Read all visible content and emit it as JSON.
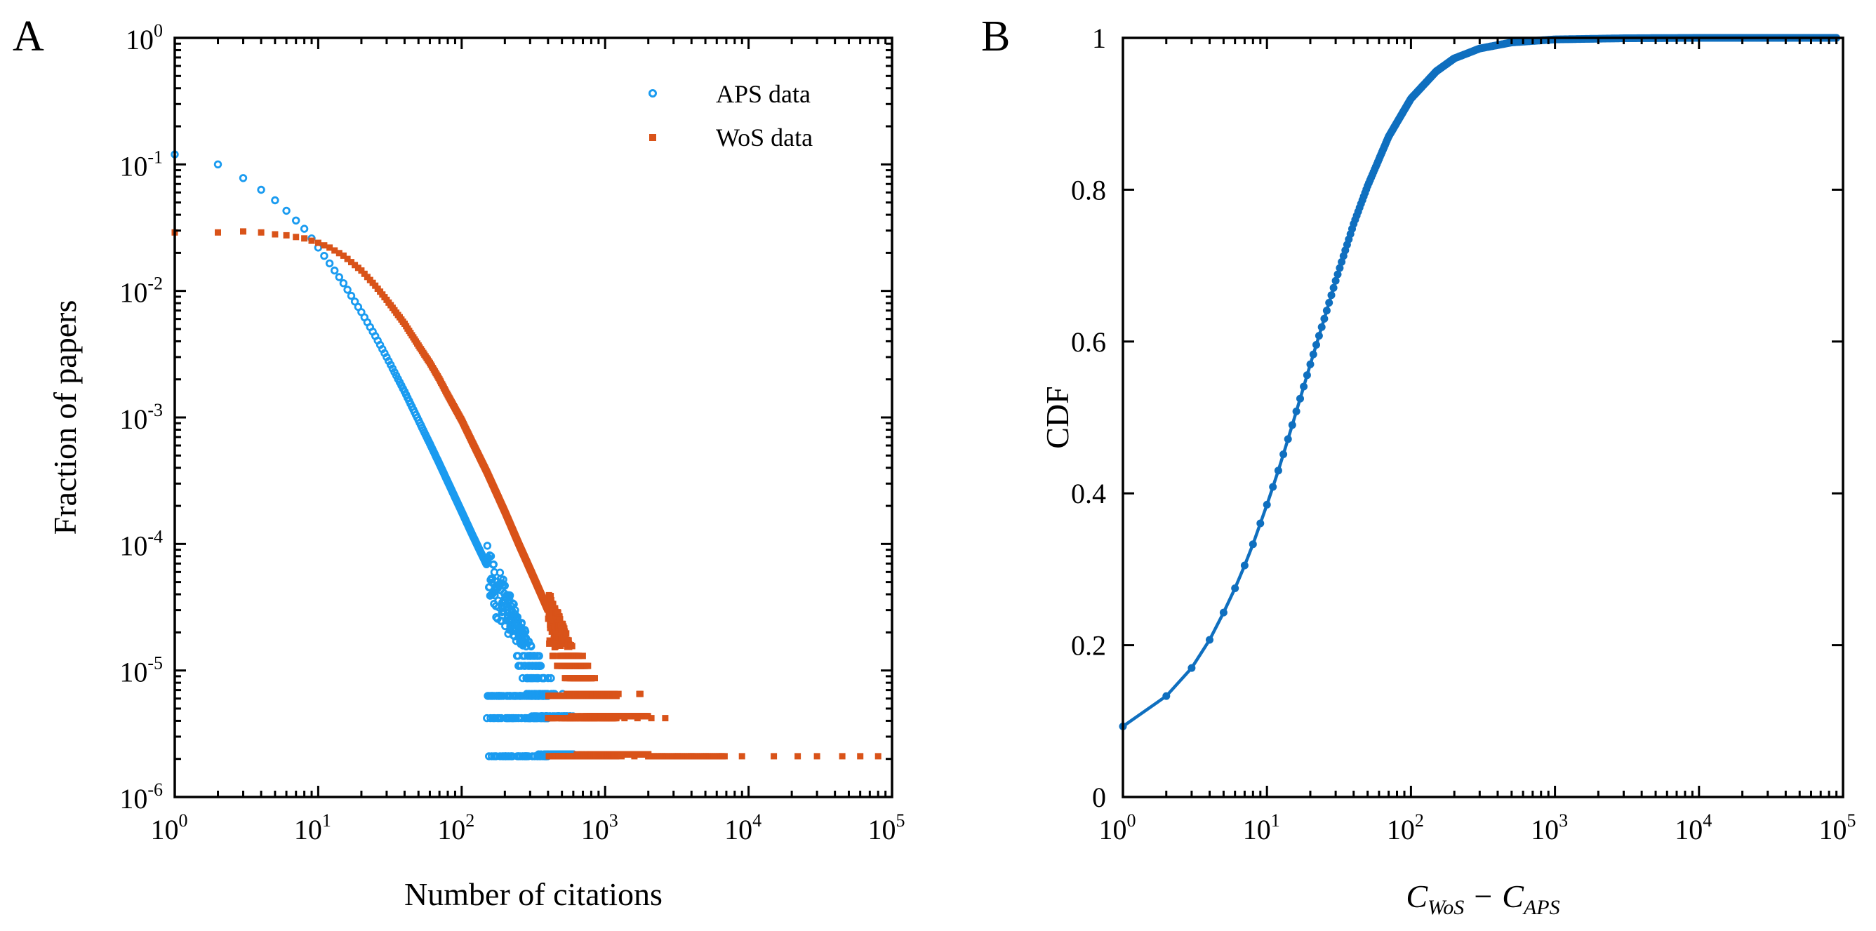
{
  "figure": {
    "panel_a_label": "A",
    "panel_b_label": "B"
  },
  "colors": {
    "aps": "#1a9bf0",
    "wos": "#d95319",
    "cdf": "#0f6fbf",
    "axis": "#000000"
  },
  "chart_data": [
    {
      "type": "scatter",
      "panel": "A",
      "title": "",
      "xlabel": "Number of citations",
      "ylabel": "Fraction of papers",
      "xscale": "log",
      "yscale": "log",
      "xlim": [
        1,
        100000
      ],
      "ylim": [
        1e-06,
        1
      ],
      "x_ticks": [
        {
          "base": "10",
          "exp": "0",
          "value": 1
        },
        {
          "base": "10",
          "exp": "1",
          "value": 10
        },
        {
          "base": "10",
          "exp": "2",
          "value": 100
        },
        {
          "base": "10",
          "exp": "3",
          "value": 1000
        },
        {
          "base": "10",
          "exp": "4",
          "value": 10000
        },
        {
          "base": "10",
          "exp": "5",
          "value": 100000
        }
      ],
      "y_ticks": [
        {
          "base": "10",
          "exp": "0",
          "value": 1
        },
        {
          "base": "10",
          "exp": "-1",
          "value": 0.1
        },
        {
          "base": "10",
          "exp": "-2",
          "value": 0.01
        },
        {
          "base": "10",
          "exp": "-3",
          "value": 0.001
        },
        {
          "base": "10",
          "exp": "-4",
          "value": 0.0001
        },
        {
          "base": "10",
          "exp": "-5",
          "value": 1e-05
        },
        {
          "base": "10",
          "exp": "-6",
          "value": 1e-06
        }
      ],
      "legend_position": "top-right",
      "series": [
        {
          "name": "APS data",
          "marker": "circle",
          "color": "#1a9bf0",
          "total_papers": 460000,
          "min_fraction": 2.1e-06,
          "tail_end": 600,
          "spread_start": 150,
          "spread_end": 400,
          "points": [
            [
              1,
              0.12
            ],
            [
              2,
              0.1
            ],
            [
              3,
              0.078
            ],
            [
              4,
              0.063
            ],
            [
              5,
              0.052
            ],
            [
              6,
              0.043
            ],
            [
              7,
              0.036
            ],
            [
              8,
              0.031
            ],
            [
              9,
              0.026
            ],
            [
              10,
              0.022
            ],
            [
              12,
              0.0165
            ],
            [
              15,
              0.0115
            ],
            [
              20,
              0.0068
            ],
            [
              25,
              0.0044
            ],
            [
              30,
              0.003
            ],
            [
              40,
              0.0016
            ],
            [
              50,
              0.00095
            ],
            [
              60,
              0.00062
            ],
            [
              70,
              0.00043
            ],
            [
              80,
              0.00031
            ],
            [
              100,
              0.00018
            ],
            [
              120,
              0.000115
            ],
            [
              150,
              6.8e-05
            ],
            [
              200,
              3.4e-05
            ],
            [
              250,
              1.9e-05
            ],
            [
              300,
              1.15e-05
            ],
            [
              350,
              7.2e-06
            ],
            [
              400,
              4.8e-06
            ],
            [
              500,
              2.8e-06
            ],
            [
              600,
              2.1e-06
            ]
          ]
        },
        {
          "name": "WoS data",
          "marker": "square",
          "color": "#d95319",
          "total_papers": 460000,
          "min_fraction": 2.1e-06,
          "tail_end": 2000,
          "spread_start": 400,
          "spread_end": 1200,
          "sparse_tail": [
            1300,
            1600,
            2000,
            2500,
            3200,
            4000,
            5000,
            6500,
            9000,
            15000,
            22000,
            30000,
            45000,
            60000,
            80000
          ],
          "points": [
            [
              1,
              0.029
            ],
            [
              2,
              0.029
            ],
            [
              3,
              0.0295
            ],
            [
              4,
              0.029
            ],
            [
              5,
              0.028
            ],
            [
              6,
              0.0275
            ],
            [
              8,
              0.026
            ],
            [
              10,
              0.024
            ],
            [
              12,
              0.022
            ],
            [
              15,
              0.019
            ],
            [
              20,
              0.0145
            ],
            [
              25,
              0.011
            ],
            [
              30,
              0.0085
            ],
            [
              40,
              0.0055
            ],
            [
              50,
              0.0037
            ],
            [
              60,
              0.0027
            ],
            [
              70,
              0.002
            ],
            [
              80,
              0.0015
            ],
            [
              100,
              0.00095
            ],
            [
              120,
              0.00062
            ],
            [
              150,
              0.00037
            ],
            [
              200,
              0.00018
            ],
            [
              250,
              0.0001
            ],
            [
              300,
              6.3e-05
            ],
            [
              400,
              3e-05
            ],
            [
              500,
              1.7e-05
            ],
            [
              600,
              1.05e-05
            ],
            [
              800,
              5.2e-06
            ],
            [
              1000,
              3e-06
            ],
            [
              1300,
              2.1e-06
            ]
          ]
        }
      ]
    },
    {
      "type": "line",
      "panel": "B",
      "title": "",
      "xlabel_main": "C",
      "xlabel_sub1": "WoS",
      "xlabel_minus": "−",
      "xlabel_sub2": "APS",
      "ylabel": "CDF",
      "xscale": "log",
      "yscale": "linear",
      "xlim": [
        1,
        100000
      ],
      "ylim": [
        0,
        1
      ],
      "x_ticks": [
        {
          "base": "10",
          "exp": "0",
          "value": 1
        },
        {
          "base": "10",
          "exp": "1",
          "value": 10
        },
        {
          "base": "10",
          "exp": "2",
          "value": 100
        },
        {
          "base": "10",
          "exp": "3",
          "value": 1000
        },
        {
          "base": "10",
          "exp": "4",
          "value": 10000
        },
        {
          "base": "10",
          "exp": "5",
          "value": 100000
        }
      ],
      "y_ticks": [
        {
          "label": "0",
          "value": 0
        },
        {
          "label": "0.2",
          "value": 0.2
        },
        {
          "label": "0.4",
          "value": 0.4
        },
        {
          "label": "0.6",
          "value": 0.6
        },
        {
          "label": "0.8",
          "value": 0.8
        },
        {
          "label": "1",
          "value": 1
        }
      ],
      "series": [
        {
          "name": "CDF",
          "color": "#0f6fbf",
          "x_max": 90000,
          "points": [
            [
              1,
              0.093
            ],
            [
              2,
              0.133
            ],
            [
              3,
              0.17
            ],
            [
              4,
              0.207
            ],
            [
              5,
              0.243
            ],
            [
              6,
              0.275
            ],
            [
              7,
              0.305
            ],
            [
              8,
              0.333
            ],
            [
              10,
              0.385
            ],
            [
              12,
              0.43
            ],
            [
              15,
              0.49
            ],
            [
              20,
              0.57
            ],
            [
              25,
              0.63
            ],
            [
              30,
              0.68
            ],
            [
              40,
              0.755
            ],
            [
              50,
              0.805
            ],
            [
              70,
              0.87
            ],
            [
              100,
              0.92
            ],
            [
              150,
              0.956
            ],
            [
              200,
              0.973
            ],
            [
              300,
              0.986
            ],
            [
              500,
              0.994
            ],
            [
              1000,
              0.998
            ],
            [
              3000,
              0.9995
            ],
            [
              10000,
              1.0
            ],
            [
              90000,
              1.0
            ]
          ]
        }
      ]
    }
  ],
  "legend": {
    "aps_label": "APS data",
    "wos_label": "WoS data"
  }
}
